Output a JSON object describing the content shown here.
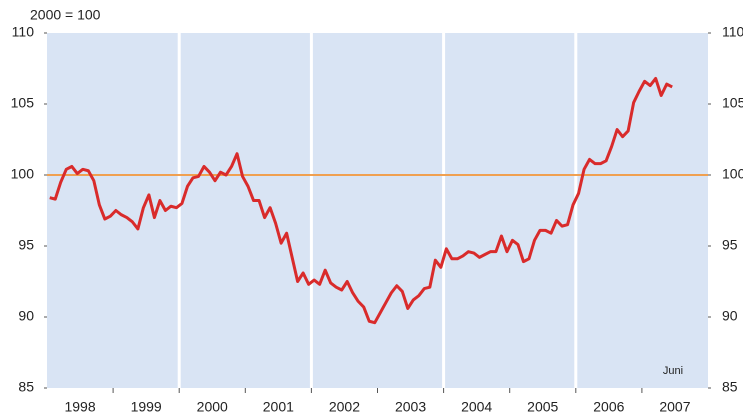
{
  "chart_data": {
    "type": "line",
    "subtitle": "2000 = 100",
    "annotation": "Juni",
    "categories": [
      null,
      null,
      null,
      null,
      null,
      null,
      "1998",
      null,
      null,
      null,
      null,
      null,
      null,
      null,
      null,
      null,
      null,
      null,
      "1999",
      null,
      null,
      null,
      null,
      null,
      null,
      null,
      null,
      null,
      null,
      null,
      "2000",
      null,
      null,
      null,
      null,
      null,
      null,
      null,
      null,
      null,
      null,
      null,
      "2001",
      null,
      null,
      null,
      null,
      null,
      null,
      null,
      null,
      null,
      null,
      null,
      "2002",
      null,
      null,
      null,
      null,
      null,
      null,
      null,
      null,
      null,
      null,
      null,
      "2003",
      null,
      null,
      null,
      null,
      null,
      null,
      null,
      null,
      null,
      null,
      null,
      "2004",
      null,
      null,
      null,
      null,
      null,
      null,
      null,
      null,
      null,
      null,
      null,
      "2005",
      null,
      null,
      null,
      null,
      null,
      null,
      null,
      null,
      null,
      null,
      null,
      "2006",
      null,
      null,
      null,
      null,
      null,
      null,
      null,
      null,
      null,
      null,
      null,
      "2007",
      null,
      null,
      null,
      null,
      null
    ],
    "series": [
      {
        "color": "#d92b2b",
        "values": [
          98.4,
          98.3,
          99.5,
          100.4,
          100.6,
          100.1,
          100.4,
          100.3,
          99.6,
          97.9,
          96.9,
          97.1,
          97.5,
          97.2,
          97.0,
          96.7,
          96.2,
          97.7,
          98.6,
          97.0,
          98.2,
          97.5,
          97.8,
          97.7,
          98.0,
          99.2,
          99.8,
          99.9,
          100.6,
          100.2,
          99.6,
          100.2,
          100.0,
          100.6,
          101.5,
          99.9,
          99.2,
          98.2,
          98.2,
          97.0,
          97.7,
          96.6,
          95.2,
          95.9,
          94.2,
          92.5,
          93.1,
          92.3,
          92.6,
          92.3,
          93.3,
          92.4,
          92.1,
          91.9,
          92.5,
          91.7,
          91.1,
          90.7,
          89.7,
          89.6,
          90.3,
          91.0,
          91.7,
          92.2,
          91.8,
          90.6,
          91.2,
          91.5,
          92.0,
          92.1,
          94.0,
          93.5,
          94.8,
          94.1,
          94.1,
          94.3,
          94.6,
          94.5,
          94.2,
          94.4,
          94.6,
          94.6,
          95.7,
          94.6,
          95.4,
          95.1,
          93.9,
          94.1,
          95.4,
          96.1,
          96.1,
          95.9,
          96.8,
          96.4,
          96.5,
          97.9,
          98.7,
          100.4,
          101.1,
          100.8,
          100.8,
          101.0,
          102.0,
          103.2,
          102.7,
          103.1,
          105.1,
          105.9,
          106.6,
          106.3,
          106.8,
          105.6,
          106.4,
          106.2,
          null,
          null,
          null,
          null,
          null,
          null
        ]
      }
    ],
    "reference_line": {
      "value": 100,
      "color": "#f0a050"
    },
    "ylim": [
      85,
      110
    ],
    "yticks": [
      85,
      90,
      95,
      100,
      105,
      110
    ],
    "y2lim": [
      85,
      110
    ],
    "y2ticks": [
      85,
      90,
      95,
      100,
      105,
      110
    ],
    "background": "#d9e4f4"
  }
}
